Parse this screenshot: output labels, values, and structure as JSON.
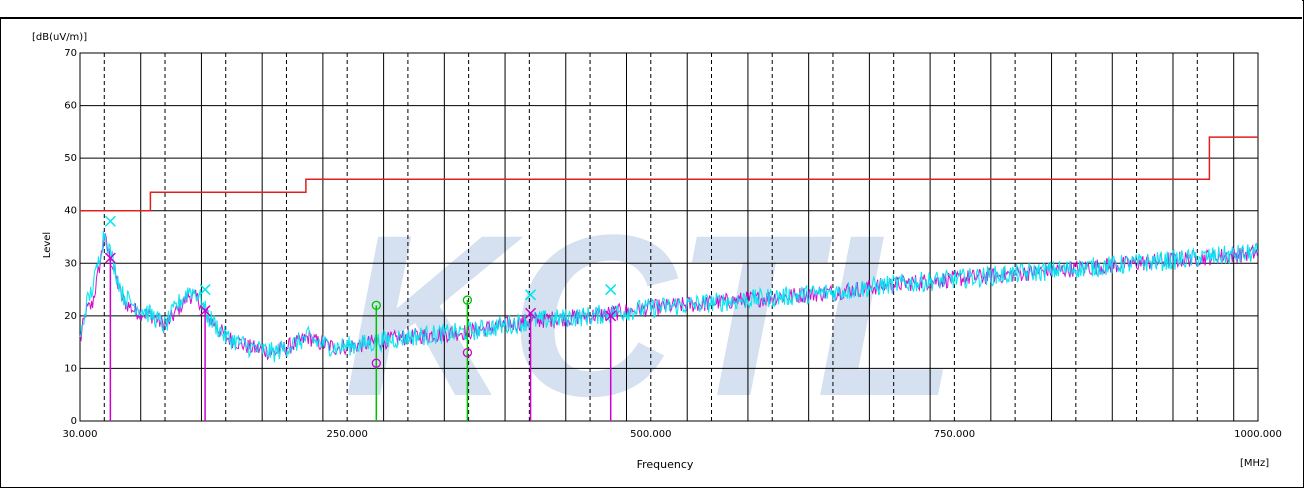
{
  "chart_data": {
    "type": "line",
    "title": "",
    "watermark": "KCTL",
    "watermark_color": "#2f62b6",
    "unit_label": "[dB(uV/m)]",
    "ylabel": "Level",
    "xlabel": "Frequency",
    "x_unit_label": "[MHz]",
    "xlim": [
      30,
      1000
    ],
    "ylim": [
      0,
      70
    ],
    "grid": true,
    "x_ticks": [
      {
        "value": 30,
        "label": "30.000"
      },
      {
        "value": 250,
        "label": "250.000"
      },
      {
        "value": 500,
        "label": "500.000"
      },
      {
        "value": 750,
        "label": "750.000"
      },
      {
        "value": 1000,
        "label": "1000.000"
      }
    ],
    "y_ticks": [
      {
        "value": 0,
        "label": "0"
      },
      {
        "value": 10,
        "label": "10"
      },
      {
        "value": 20,
        "label": "20"
      },
      {
        "value": 30,
        "label": "30"
      },
      {
        "value": 40,
        "label": "40"
      },
      {
        "value": 50,
        "label": "50"
      },
      {
        "value": 60,
        "label": "60"
      },
      {
        "value": 70,
        "label": "70"
      }
    ],
    "x_grid_solid": [
      30,
      80,
      130,
      180,
      230,
      280,
      330,
      380,
      430,
      480,
      530,
      580,
      630,
      680,
      730,
      780,
      830,
      880,
      930,
      980
    ],
    "x_grid_dashed": [
      50,
      100,
      150,
      200,
      250,
      300,
      350,
      400,
      450,
      500,
      550,
      600,
      650,
      700,
      750,
      800,
      850,
      900,
      950
    ],
    "limit_line": {
      "color": "#e02020",
      "points": [
        [
          30,
          40
        ],
        [
          88,
          40
        ],
        [
          88,
          43.5
        ],
        [
          216,
          43.5
        ],
        [
          216,
          46
        ],
        [
          960,
          46
        ],
        [
          960,
          54
        ],
        [
          1000,
          54
        ]
      ]
    },
    "series": [
      {
        "color": "#d000d0",
        "points": [
          [
            30,
            15
          ],
          [
            35,
            21
          ],
          [
            40,
            22
          ],
          [
            45,
            28
          ],
          [
            50,
            35
          ],
          [
            55,
            31
          ],
          [
            60,
            27
          ],
          [
            65,
            23
          ],
          [
            75,
            21
          ],
          [
            90,
            20
          ],
          [
            100,
            18
          ],
          [
            110,
            21
          ],
          [
            120,
            24
          ],
          [
            128,
            23
          ],
          [
            135,
            20
          ],
          [
            150,
            16
          ],
          [
            170,
            14
          ],
          [
            190,
            13
          ],
          [
            200,
            14
          ],
          [
            210,
            15
          ],
          [
            218,
            16
          ],
          [
            225,
            15
          ],
          [
            240,
            14
          ],
          [
            260,
            14.5
          ],
          [
            300,
            16
          ],
          [
            350,
            17
          ],
          [
            400,
            19
          ],
          [
            450,
            20
          ],
          [
            500,
            21.5
          ],
          [
            550,
            22.5
          ],
          [
            600,
            23.5
          ],
          [
            650,
            24.5
          ],
          [
            700,
            26
          ],
          [
            750,
            27
          ],
          [
            800,
            28
          ],
          [
            850,
            29
          ],
          [
            900,
            30
          ],
          [
            950,
            31
          ],
          [
            1000,
            32
          ]
        ]
      },
      {
        "color": "#00e5ee",
        "points": [
          [
            30,
            15
          ],
          [
            35,
            22
          ],
          [
            40,
            25
          ],
          [
            45,
            30
          ],
          [
            50,
            36
          ],
          [
            55,
            32
          ],
          [
            60,
            28
          ],
          [
            65,
            24
          ],
          [
            75,
            22
          ],
          [
            90,
            20
          ],
          [
            100,
            18
          ],
          [
            110,
            22
          ],
          [
            120,
            25
          ],
          [
            128,
            24
          ],
          [
            135,
            20
          ],
          [
            150,
            16
          ],
          [
            170,
            14
          ],
          [
            190,
            13
          ],
          [
            200,
            14
          ],
          [
            210,
            15
          ],
          [
            218,
            16
          ],
          [
            225,
            15
          ],
          [
            240,
            14
          ],
          [
            260,
            14.5
          ],
          [
            300,
            16
          ],
          [
            350,
            17
          ],
          [
            400,
            19
          ],
          [
            450,
            20
          ],
          [
            500,
            21.5
          ],
          [
            550,
            22.5
          ],
          [
            600,
            23.5
          ],
          [
            650,
            24.5
          ],
          [
            700,
            26
          ],
          [
            750,
            27
          ],
          [
            800,
            28
          ],
          [
            850,
            29
          ],
          [
            900,
            30
          ],
          [
            950,
            31
          ],
          [
            1000,
            32
          ]
        ]
      }
    ],
    "markers": [
      {
        "x": 55,
        "y": 31,
        "symbol": "x",
        "color": "#d000d0",
        "stem": true
      },
      {
        "x": 55,
        "y": 38,
        "symbol": "x",
        "color": "#00e5ee",
        "stem": false
      },
      {
        "x": 133,
        "y": 21,
        "symbol": "x",
        "color": "#d000d0",
        "stem": true
      },
      {
        "x": 133,
        "y": 25,
        "symbol": "x",
        "color": "#00e5ee",
        "stem": false
      },
      {
        "x": 274,
        "y": 22,
        "symbol": "o",
        "color": "#00c000",
        "stem": true
      },
      {
        "x": 274,
        "y": 11,
        "symbol": "o",
        "color": "#d000d0",
        "stem": false
      },
      {
        "x": 349,
        "y": 23,
        "symbol": "o",
        "color": "#00c000",
        "stem": true
      },
      {
        "x": 349,
        "y": 13,
        "symbol": "o",
        "color": "#d000d0",
        "stem": false
      },
      {
        "x": 401,
        "y": 20.5,
        "symbol": "x",
        "color": "#d000d0",
        "stem": true
      },
      {
        "x": 401,
        "y": 24,
        "symbol": "x",
        "color": "#00e5ee",
        "stem": false
      },
      {
        "x": 467,
        "y": 20,
        "symbol": "x",
        "color": "#d000d0",
        "stem": true
      },
      {
        "x": 467,
        "y": 25,
        "symbol": "x",
        "color": "#00e5ee",
        "stem": false
      }
    ]
  }
}
